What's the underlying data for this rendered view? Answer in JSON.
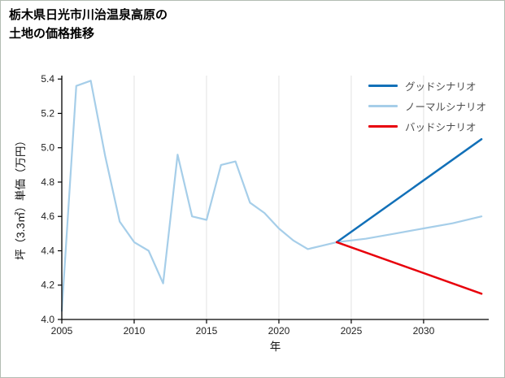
{
  "title": {
    "line1": "栃木県日光市川治温泉高原の",
    "line2": "土地の価格推移"
  },
  "chart_data": {
    "type": "line",
    "title": "栃木県日光市川治温泉高原の土地の価格推移",
    "xlabel": "年",
    "ylabel": "坪（3.3㎡）単価（万円）",
    "xlim": [
      2005,
      2034.5
    ],
    "ylim": [
      4.0,
      5.42
    ],
    "grid": "vertical-only",
    "legend_position": "top-right-inside",
    "axis_color": "#000000",
    "grid_color": "#e2e2e2",
    "tick_label_color": "#222222",
    "xticks": [
      {
        "v": 2005,
        "label": "2005"
      },
      {
        "v": 2010,
        "label": "2010"
      },
      {
        "v": 2015,
        "label": "2015"
      },
      {
        "v": 2020,
        "label": "2020"
      },
      {
        "v": 2025,
        "label": "2025"
      },
      {
        "v": 2030,
        "label": "2030"
      }
    ],
    "yticks": [
      {
        "v": 4.0,
        "label": "4.0"
      },
      {
        "v": 4.2,
        "label": "4.2"
      },
      {
        "v": 4.4,
        "label": "4.4"
      },
      {
        "v": 4.6,
        "label": "4.6"
      },
      {
        "v": 4.8,
        "label": "4.8"
      },
      {
        "v": 5.0,
        "label": "5.0"
      },
      {
        "v": 5.2,
        "label": "5.2"
      },
      {
        "v": 5.4,
        "label": "5.4"
      }
    ],
    "series": [
      {
        "key": "good",
        "name": "グッドシナリオ",
        "color": "#1270b8",
        "width": 2.5,
        "x": [
          2024,
          2034
        ],
        "y": [
          4.45,
          5.05
        ]
      },
      {
        "key": "normal",
        "name": "ノーマルシナリオ",
        "color": "#a6cee9",
        "width": 2.2,
        "x": [
          2005,
          2006,
          2007,
          2008,
          2009,
          2010,
          2011,
          2012,
          2013,
          2014,
          2015,
          2016,
          2017,
          2018,
          2019,
          2020,
          2021,
          2022,
          2023,
          2024,
          2026,
          2028,
          2030,
          2032,
          2034
        ],
        "y": [
          4.05,
          5.36,
          5.39,
          4.95,
          4.57,
          4.45,
          4.4,
          4.21,
          4.96,
          4.6,
          4.58,
          4.9,
          4.92,
          4.68,
          4.62,
          4.53,
          4.46,
          4.41,
          4.43,
          4.45,
          4.47,
          4.5,
          4.53,
          4.56,
          4.6
        ]
      },
      {
        "key": "bad",
        "name": "バッドシナリオ",
        "color": "#e8000b",
        "width": 2.5,
        "x": [
          2024,
          2034
        ],
        "y": [
          4.45,
          4.15
        ]
      }
    ]
  }
}
